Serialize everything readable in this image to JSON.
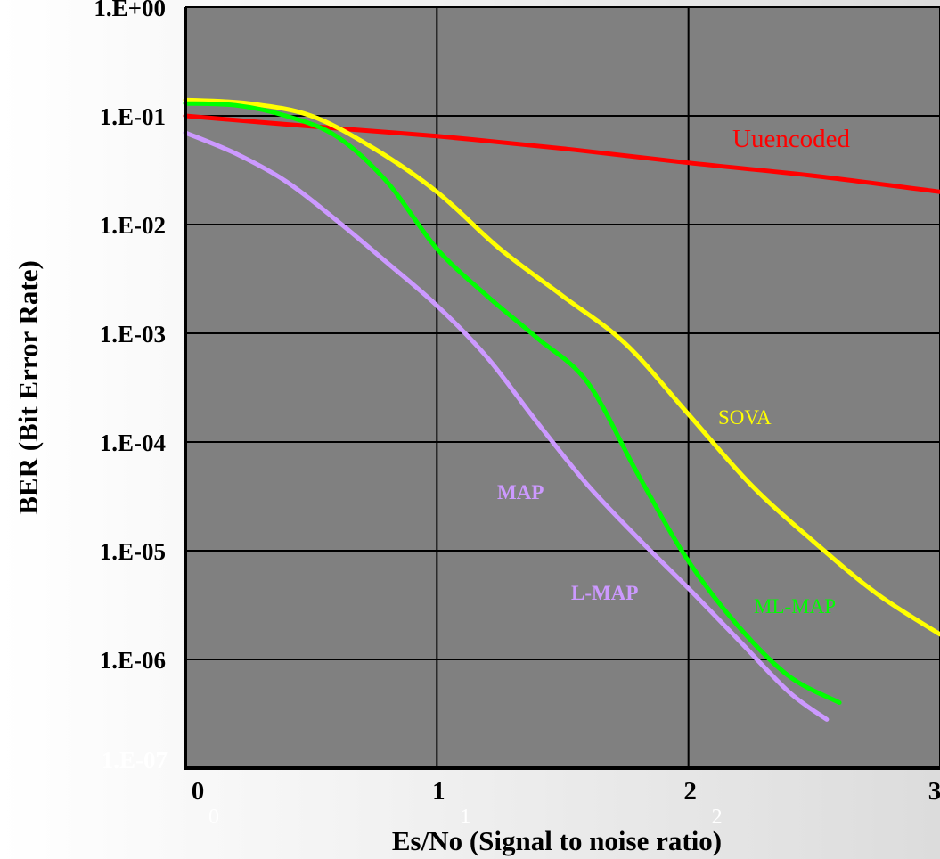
{
  "chart_data": {
    "type": "line",
    "title": "",
    "xlabel": "Es/No (Signal to noise ratio)",
    "ylabel": "BER (Bit Error Rate)",
    "x_scale": "linear",
    "y_scale": "log",
    "xlim": [
      0,
      3
    ],
    "ylim": [
      1e-07,
      1
    ],
    "grid": true,
    "plot_background": "#808080",
    "x_tick_labels": [
      "0",
      "1",
      "2",
      "3"
    ],
    "x_ghost_tick_labels": [
      "0",
      "1",
      "2"
    ],
    "y_tick_labels": [
      "1.E+00",
      "1.E-01",
      "1.E-02",
      "1.E-03",
      "1.E-04",
      "1.E-05",
      "1.E-06",
      "1.E-07"
    ],
    "series": [
      {
        "name": "Uuencoded",
        "color": "#ff0000",
        "label_bold": false,
        "x": [
          0,
          0.5,
          1.0,
          1.5,
          2.0,
          2.5,
          3.0
        ],
        "y": [
          0.1,
          0.08,
          0.065,
          0.05,
          0.037,
          0.028,
          0.02
        ]
      },
      {
        "name": "SOVA",
        "color": "#ffff00",
        "label_bold": false,
        "x": [
          0,
          0.25,
          0.5,
          0.75,
          1.0,
          1.25,
          1.5,
          1.75,
          2.0,
          2.25,
          2.5,
          2.75,
          3.0
        ],
        "y": [
          0.14,
          0.13,
          0.1,
          0.05,
          0.02,
          0.006,
          0.0022,
          0.0008,
          0.00018,
          4e-05,
          1.2e-05,
          4e-06,
          1.7e-06
        ]
      },
      {
        "name": "ML-MAP",
        "color": "#00ff00",
        "label_bold": false,
        "x": [
          0,
          0.2,
          0.4,
          0.6,
          0.8,
          1.0,
          1.2,
          1.4,
          1.6,
          1.8,
          2.0,
          2.2,
          2.4,
          2.6
        ],
        "y": [
          0.13,
          0.125,
          0.1,
          0.065,
          0.025,
          0.006,
          0.0022,
          0.0009,
          0.00035,
          5e-05,
          8e-06,
          2e-06,
          7e-07,
          4e-07
        ]
      },
      {
        "name": "MAP",
        "color": "#cc99ff",
        "label_bold": true,
        "x": [
          0,
          0.2,
          0.4,
          0.6,
          0.8,
          1.0,
          1.2,
          1.4,
          1.6,
          1.8,
          2.0,
          2.2,
          2.4,
          2.55
        ],
        "y": [
          0.07,
          0.045,
          0.025,
          0.011,
          0.0045,
          0.0018,
          0.0006,
          0.00015,
          4e-05,
          1.3e-05,
          4.5e-06,
          1.5e-06,
          5e-07,
          2.8e-07
        ]
      },
      {
        "name": "L-MAP",
        "color": "#cc99ff",
        "label_bold": true,
        "x": [],
        "y": []
      }
    ]
  }
}
